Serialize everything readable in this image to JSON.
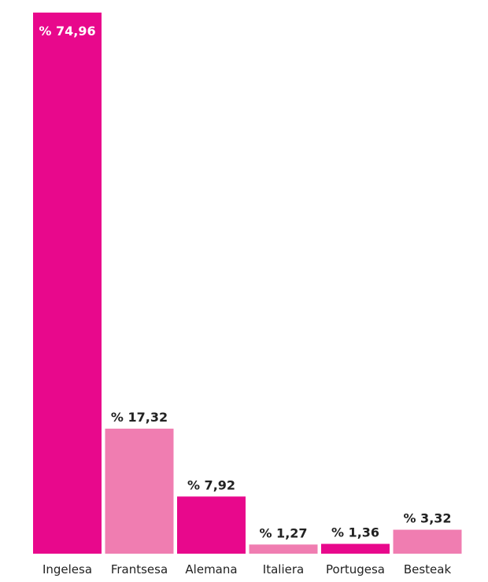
{
  "chart_data": {
    "type": "bar",
    "categories": [
      "Ingelesa",
      "Frantsesa",
      "Alemana",
      "Italiera",
      "Portugesa",
      "Besteak"
    ],
    "values": [
      74.96,
      17.32,
      7.92,
      1.27,
      1.36,
      3.32
    ],
    "value_labels": [
      "% 74,96",
      "% 17,32",
      "% 7,92",
      "% 1,27",
      "% 1,36",
      "% 3,32"
    ],
    "bar_colors": [
      "#e8088c",
      "#f07db1",
      "#e8088c",
      "#f07db1",
      "#e8088c",
      "#f07db1"
    ],
    "title": "",
    "xlabel": "",
    "ylabel": "",
    "ylim": [
      0,
      74.96
    ],
    "grid": false
  }
}
